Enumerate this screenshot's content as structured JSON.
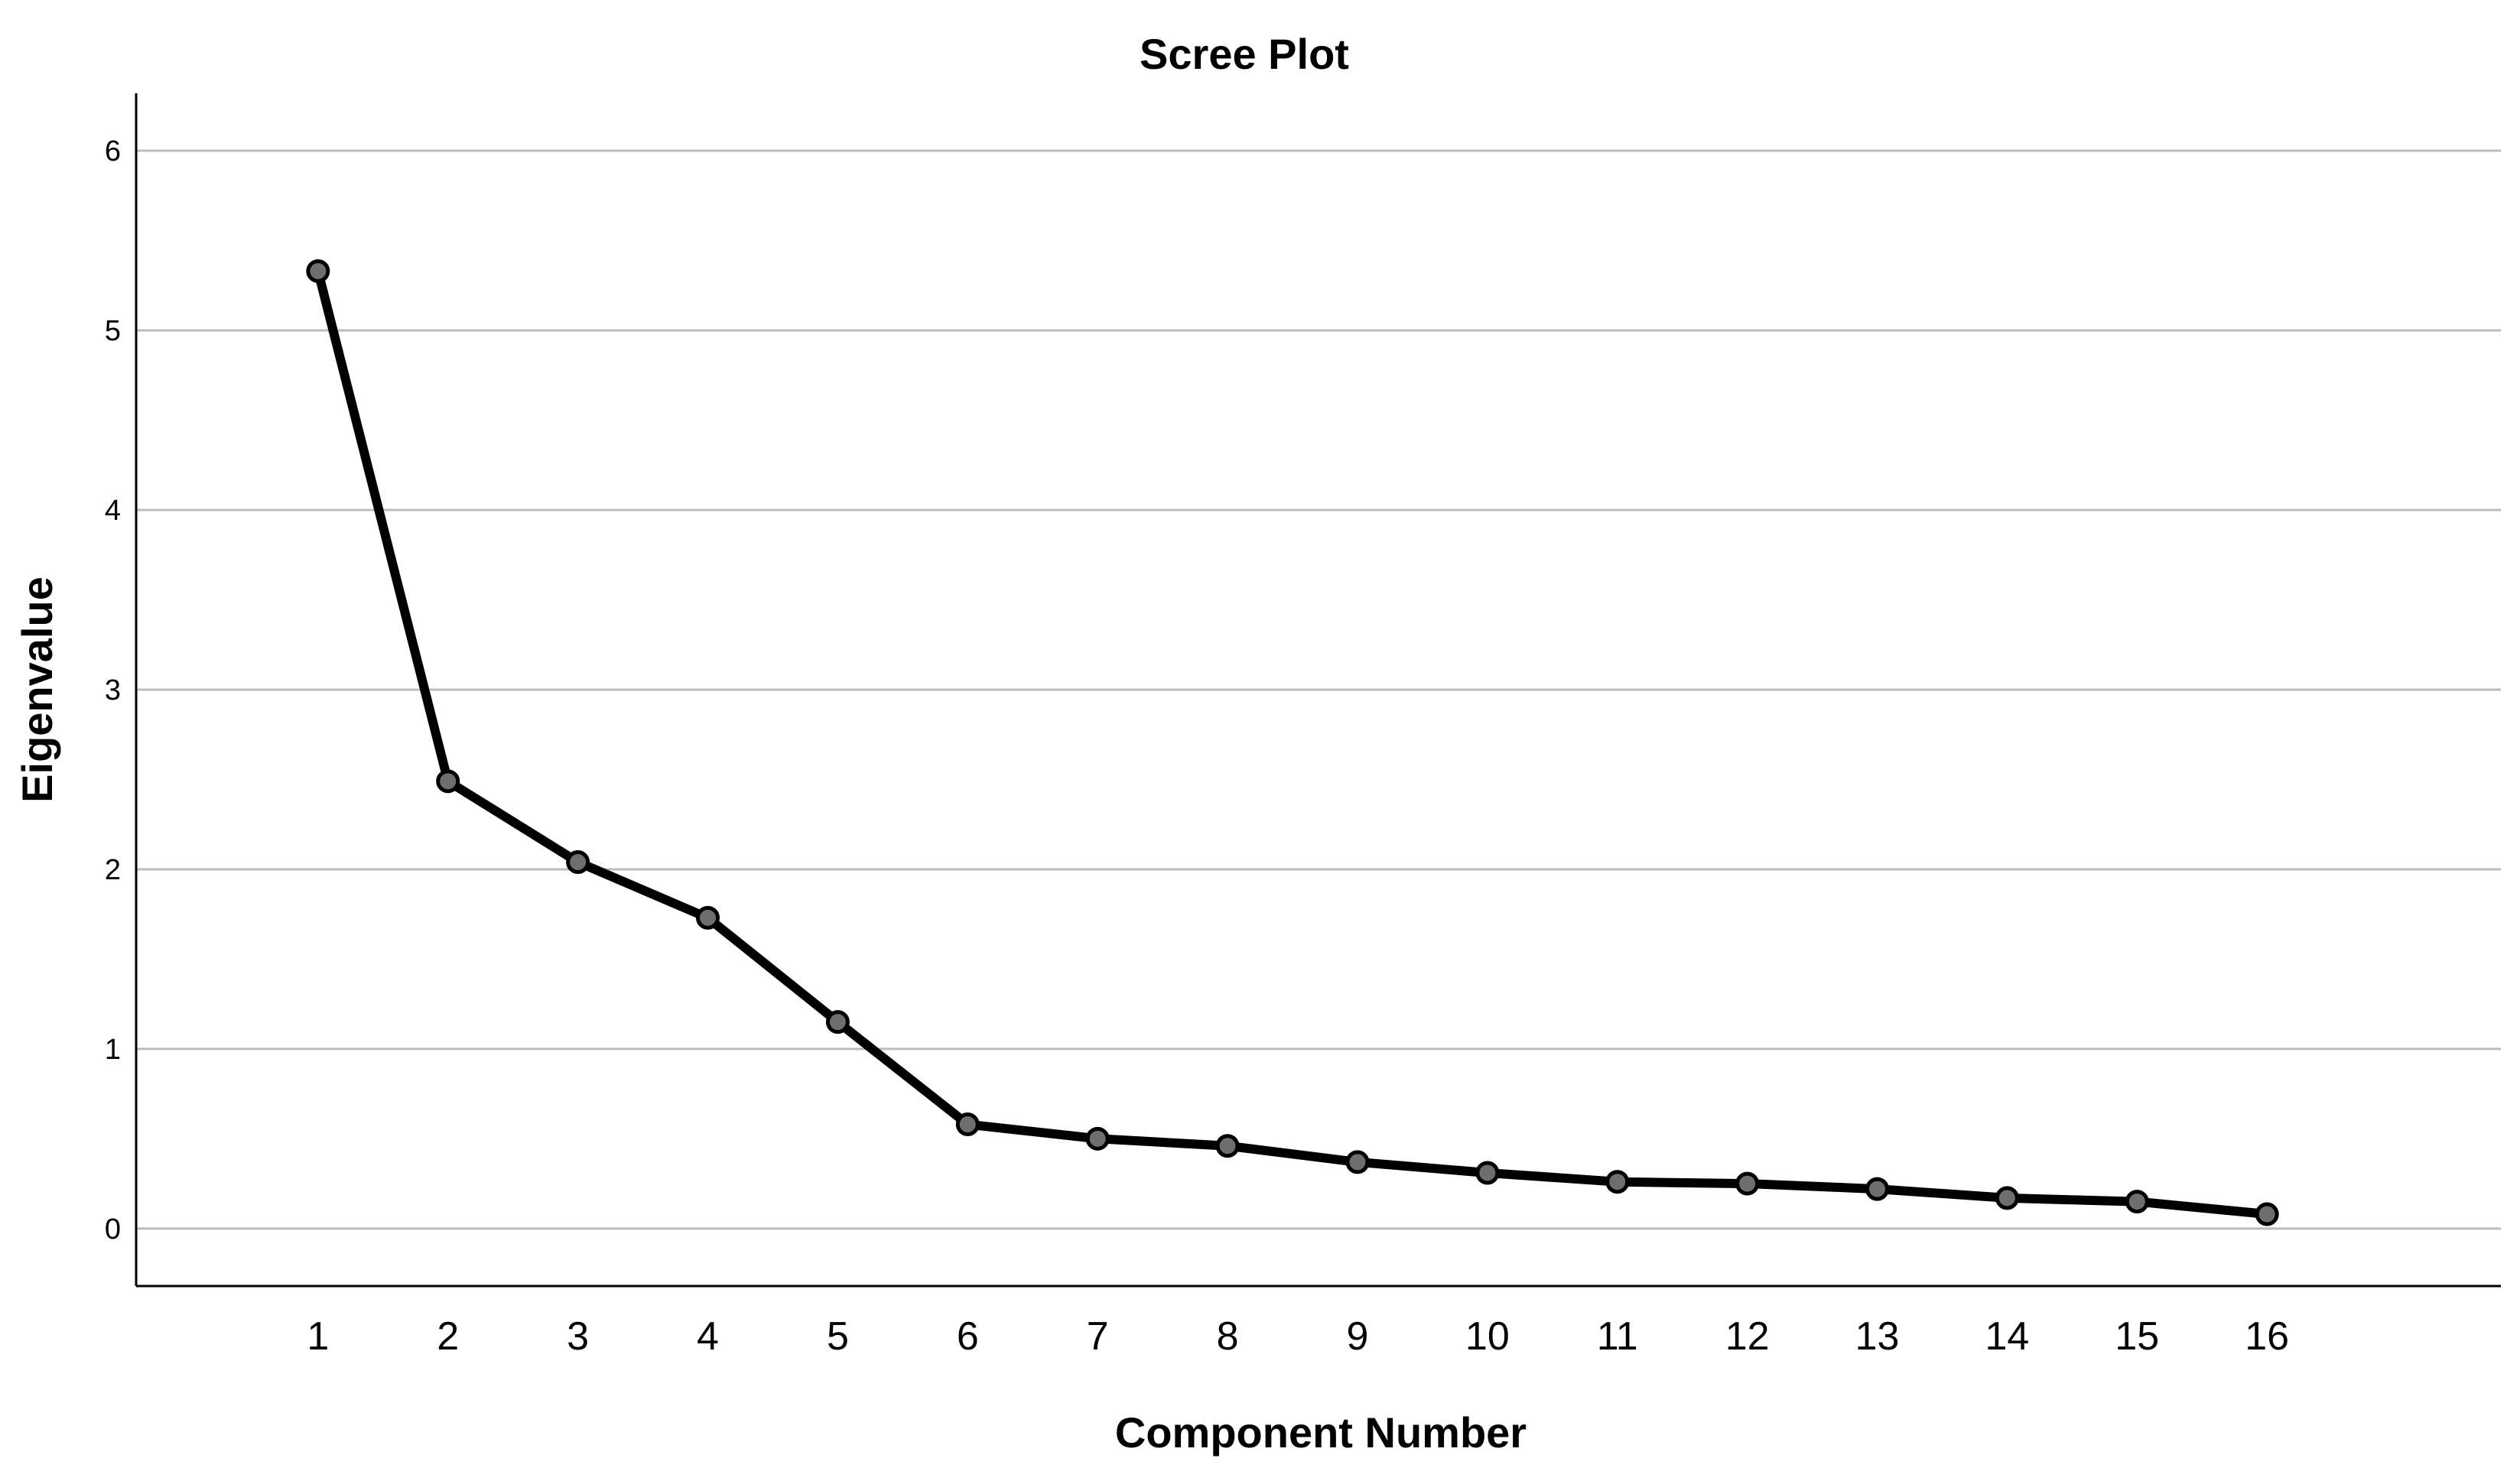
{
  "chart_data": {
    "type": "line",
    "title": "Scree Plot",
    "xlabel": "Component Number",
    "ylabel": "Eigenvalue",
    "x": [
      1,
      2,
      3,
      4,
      5,
      6,
      7,
      8,
      9,
      10,
      11,
      12,
      13,
      14,
      15,
      16
    ],
    "x_tick_labels": [
      "1",
      "2",
      "3",
      "4",
      "5",
      "6",
      "7",
      "8",
      "9",
      "10",
      "11",
      "12",
      "13",
      "14",
      "15",
      "16"
    ],
    "values": [
      5.33,
      2.49,
      2.04,
      1.73,
      1.15,
      0.58,
      0.5,
      0.46,
      0.37,
      0.31,
      0.26,
      0.25,
      0.22,
      0.17,
      0.15,
      0.08
    ],
    "y_ticks": [
      0,
      1,
      2,
      3,
      4,
      5,
      6
    ],
    "y_tick_labels": [
      "0",
      "1",
      "2",
      "3",
      "4",
      "5",
      "6"
    ],
    "ylim": [
      -0.32,
      6.32
    ],
    "xlim": [
      -0.4,
      17.8
    ],
    "grid": "horizontal",
    "legend": "none",
    "colors": {
      "line": "#000000",
      "marker_fill": "#6e6e6e",
      "marker_stroke": "#000000",
      "grid": "#bcbcbc",
      "axis": "#000000"
    }
  }
}
